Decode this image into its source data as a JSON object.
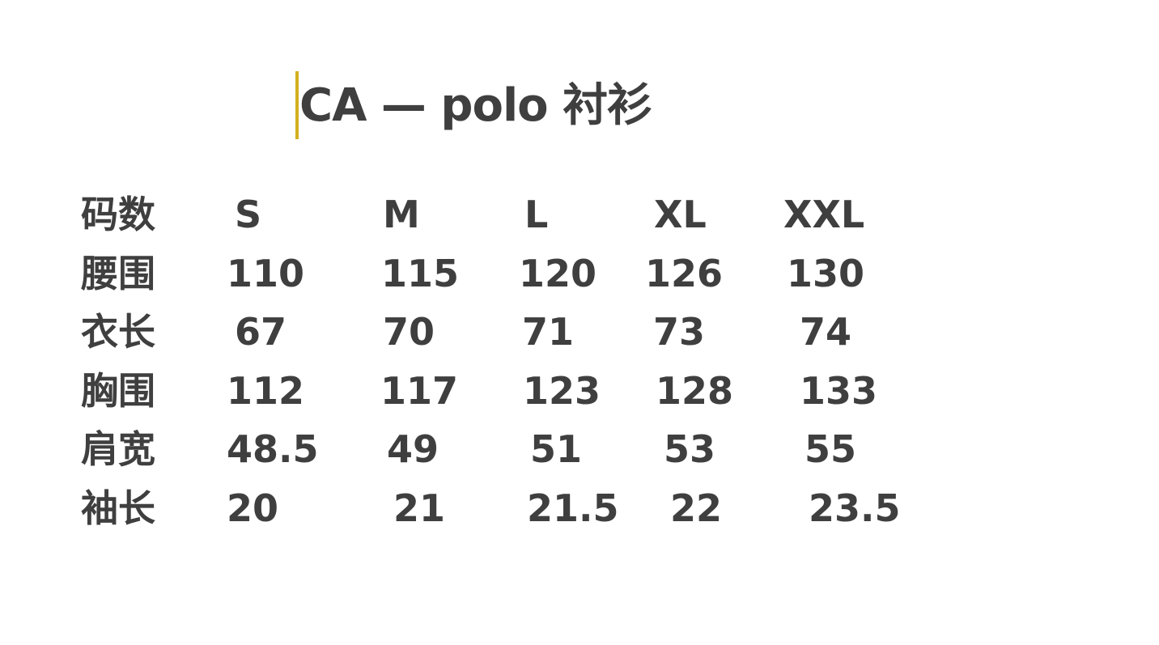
{
  "title": "CA — polo 衬衫",
  "cursor_color": "#d4b020",
  "text_color": "#3f3f3f",
  "header": {
    "label": "码数",
    "sizes": [
      "S",
      "M",
      "L",
      "XL",
      "XXL"
    ]
  },
  "rows": [
    {
      "label": "腰围",
      "values": [
        "110",
        "115",
        "120",
        "126",
        "130"
      ]
    },
    {
      "label": "衣长",
      "values": [
        "67",
        "70",
        "71",
        "73",
        "74"
      ]
    },
    {
      "label": "胸围",
      "values": [
        "112",
        "117",
        "123",
        "128",
        "133"
      ]
    },
    {
      "label": "肩宽",
      "values": [
        "48.5",
        "49",
        "51",
        "53",
        "55"
      ]
    },
    {
      "label": "袖长",
      "values": [
        "20",
        "21",
        "21.5",
        "22",
        "23.5"
      ]
    }
  ]
}
